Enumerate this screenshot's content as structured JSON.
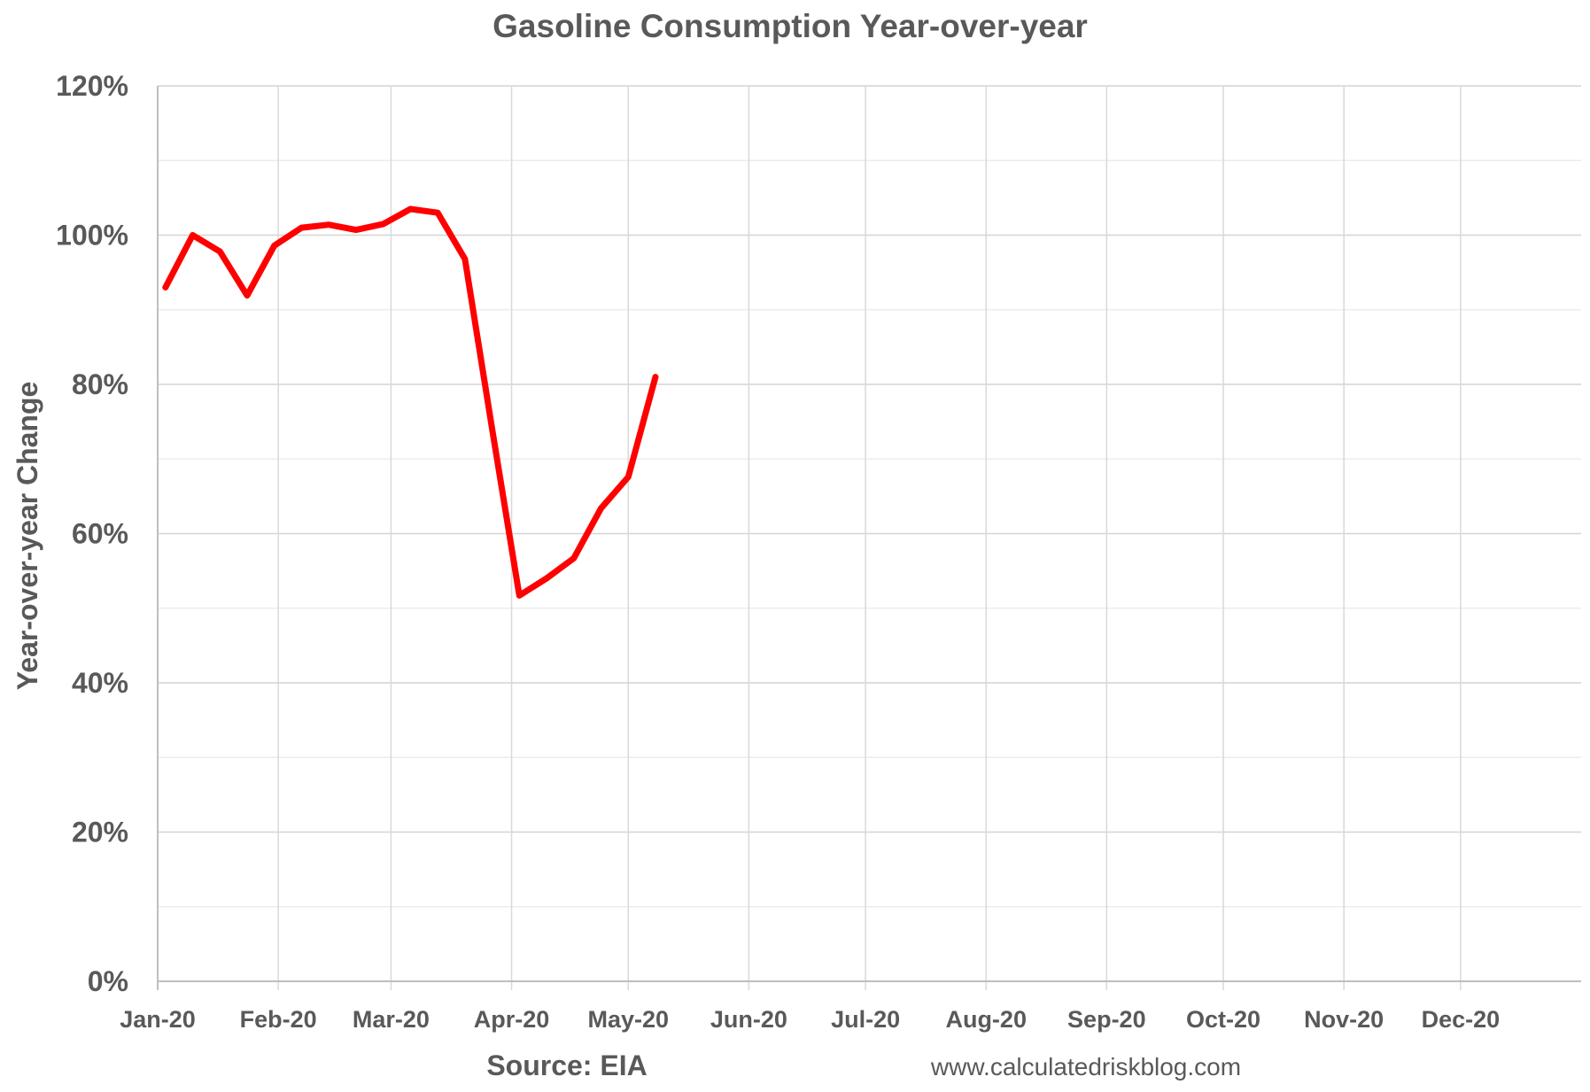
{
  "chart_data": {
    "type": "line",
    "title": "Gasoline Consumption Year-over-year",
    "ylabel": "Year-over-year Change",
    "xlabel": "",
    "ylim": [
      0,
      120
    ],
    "y_ticks": [
      "0%",
      "20%",
      "40%",
      "60%",
      "80%",
      "100%",
      "120%"
    ],
    "x_ticks": [
      "Jan-20",
      "Feb-20",
      "Mar-20",
      "Apr-20",
      "May-20",
      "Jun-20",
      "Jul-20",
      "Aug-20",
      "Sep-20",
      "Oct-20",
      "Nov-20",
      "Dec-20"
    ],
    "grid": true,
    "series": [
      {
        "color": "#ff0000",
        "x": [
          "2020-01-03",
          "2020-01-10",
          "2020-01-17",
          "2020-01-24",
          "2020-01-31",
          "2020-02-07",
          "2020-02-14",
          "2020-02-21",
          "2020-02-28",
          "2020-03-06",
          "2020-03-13",
          "2020-03-20",
          "2020-03-27",
          "2020-04-03",
          "2020-04-10",
          "2020-04-17",
          "2020-04-24",
          "2020-05-01",
          "2020-05-08"
        ],
        "values": [
          93.0,
          100.0,
          97.8,
          91.9,
          98.6,
          101.0,
          101.4,
          100.7,
          101.5,
          103.5,
          103.0,
          96.8,
          74.0,
          51.7,
          54.0,
          56.7,
          63.4,
          67.6,
          81.0
        ]
      }
    ]
  },
  "footer": {
    "source": "Source: EIA",
    "credit": "www.calculatedriskblog.com"
  }
}
